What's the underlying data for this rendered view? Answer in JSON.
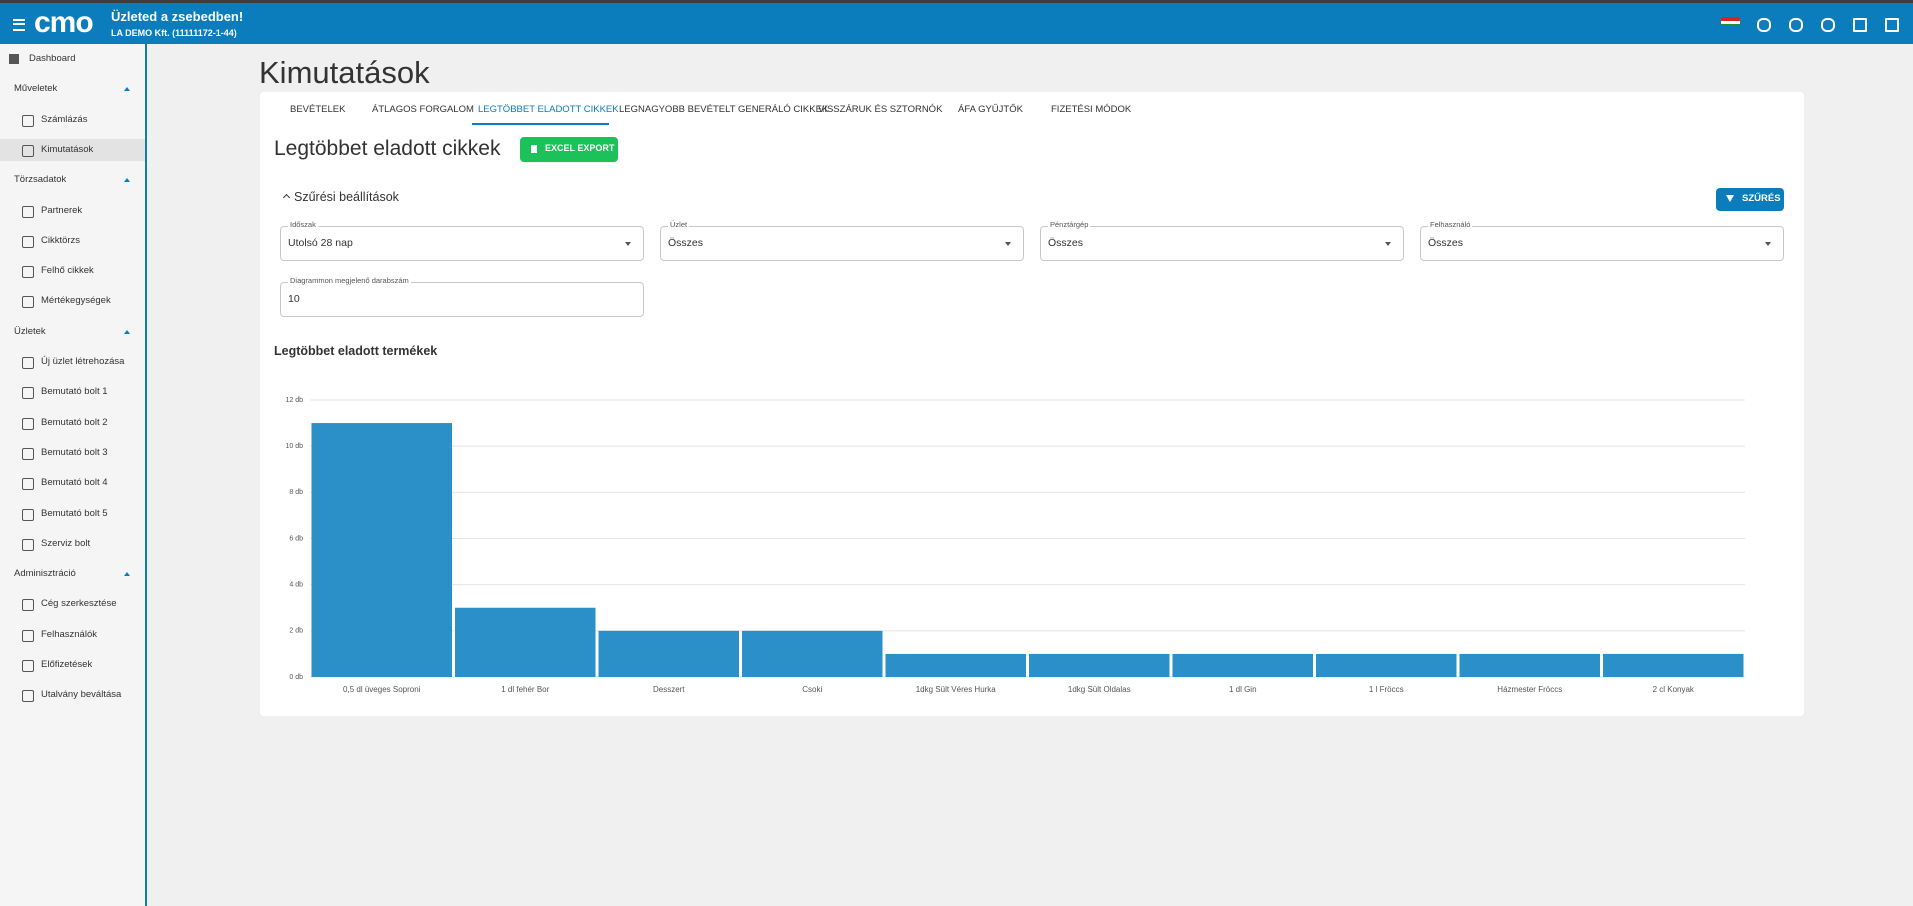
{
  "header": {
    "logo": "cmo",
    "title": "Üzleted a zsebedben!",
    "subtitle": "LA DEMO Kft. (11111172-1-44)"
  },
  "sidebar": {
    "dashboard": "Dashboard",
    "groups": [
      {
        "title": "Műveletek",
        "items": [
          "Számlázás",
          "Kimutatások"
        ]
      },
      {
        "title": "Törzsadatok",
        "items": [
          "Partnerek",
          "Cikktörzs",
          "Felhő cikkek",
          "Mértékegységek"
        ]
      },
      {
        "title": "Üzletek",
        "items": [
          "Új üzlet létrehozása",
          "Bemutató bolt 1",
          "Bemutató bolt 2",
          "Bemutató bolt 3",
          "Bemutató bolt 4",
          "Bemutató bolt 5",
          "Szerviz bolt"
        ]
      },
      {
        "title": "Adminisztráció",
        "items": [
          "Cég szerkesztése",
          "Felhasználók",
          "Előfizetések",
          "Utalvány beváltása"
        ]
      }
    ]
  },
  "page": {
    "title": "Kimutatások",
    "tabs": [
      "BEVÉTELEK",
      "ÁTLAGOS FORGALOM",
      "LEGTÖBBET ELADOTT CIKKEK",
      "LEGNAGYOBB BEVÉTELT GENERÁLÓ CIKKEK",
      "VISSZÁRUK ÉS SZTORNÓK",
      "ÁFA GYŰJTŐK",
      "FIZETÉSI MÓDOK"
    ],
    "section_title": "Legtöbbet eladott cikkek",
    "export_button": "EXCEL EXPORT",
    "filter_title": "Szűrési beállítások",
    "filter_button": "SZŰRÉS",
    "filters": [
      {
        "label": "Időszak",
        "value": "Utolsó 28 nap"
      },
      {
        "label": "Üzlet",
        "value": "Összes"
      },
      {
        "label": "Pénztárgép",
        "value": "Összes"
      },
      {
        "label": "Felhasználó",
        "value": "Összes"
      },
      {
        "label": "Diagrammon megjelenő darabszám",
        "value": "10"
      }
    ]
  },
  "chart_data": {
    "type": "bar",
    "title": "Legtöbbet eladott termékek",
    "categories": [
      "0,5 dl üveges Soproni",
      "1 dl fehér Bor",
      "Desszert",
      "Csoki",
      "1dkg Sült Véres Hurka",
      "1dkg Sült Oldalas",
      "1 dl Gin",
      "1 l Fröccs",
      "Házmester Fröccs",
      "2 cl Konyak"
    ],
    "values": [
      11,
      3,
      2,
      2,
      1,
      1,
      1,
      1,
      1,
      1
    ],
    "color": "#2b8fc8",
    "ylim": [
      0,
      12
    ],
    "yticks": [
      {
        "value": 0,
        "label": "0 db"
      },
      {
        "value": 2,
        "label": "2 db"
      },
      {
        "value": 4,
        "label": "4 db"
      },
      {
        "value": 6,
        "label": "6 db"
      },
      {
        "value": 8,
        "label": "8 db"
      },
      {
        "value": 10,
        "label": "10 db"
      },
      {
        "value": 12,
        "label": "12 db"
      }
    ],
    "grid": true
  }
}
